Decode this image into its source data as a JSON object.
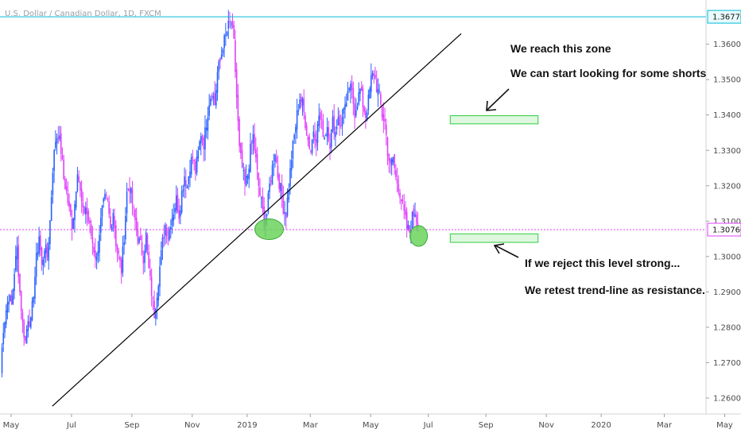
{
  "chart_data": {
    "type": "candlestick",
    "title": "U.S. Dollar / Canadian Dollar, 1D, FXCM",
    "ylim": [
      1.2555,
      1.3725
    ],
    "y_ticks": [
      {
        "value": 1.27,
        "label": "1.27000"
      },
      {
        "value": 1.28,
        "label": "1.28000"
      },
      {
        "value": 1.29,
        "label": "1.29000"
      },
      {
        "value": 1.3,
        "label": "1.30000"
      },
      {
        "value": 1.31,
        "label": "1.31000"
      },
      {
        "value": 1.32,
        "label": "1.32000"
      },
      {
        "value": 1.33,
        "label": "1.33000"
      },
      {
        "value": 1.34,
        "label": "1.34000"
      },
      {
        "value": 1.35,
        "label": "1.35000"
      },
      {
        "value": 1.36,
        "label": "1.36000"
      },
      {
        "value": 1.26,
        "label": "1.26000"
      }
    ],
    "x_ticks": [
      {
        "label": "May",
        "index": 0
      },
      {
        "label": "Jul",
        "index": 44
      },
      {
        "label": "Sep",
        "index": 88
      },
      {
        "label": "Nov",
        "index": 132
      },
      {
        "label": "2019",
        "index": 172
      },
      {
        "label": "Mar",
        "index": 218
      },
      {
        "label": "May",
        "index": 262
      },
      {
        "label": "Jul",
        "index": 304
      },
      {
        "label": "Sep",
        "index": 346
      },
      {
        "label": "Nov",
        "index": 390
      },
      {
        "label": "2020",
        "index": 430
      },
      {
        "label": "Mar",
        "index": 476
      },
      {
        "label": "May",
        "index": 520
      }
    ],
    "x_count": 540,
    "close_path": [
      [
        0,
        1.268
      ],
      [
        2,
        1.28
      ],
      [
        4,
        1.285
      ],
      [
        6,
        1.289
      ],
      [
        8,
        1.286
      ],
      [
        10,
        1.296
      ],
      [
        12,
        1.302
      ],
      [
        14,
        1.29
      ],
      [
        16,
        1.281
      ],
      [
        18,
        1.276
      ],
      [
        20,
        1.283
      ],
      [
        22,
        1.281
      ],
      [
        24,
        1.29
      ],
      [
        26,
        1.299
      ],
      [
        28,
        1.306
      ],
      [
        30,
        1.297
      ],
      [
        32,
        1.303
      ],
      [
        34,
        1.3
      ],
      [
        36,
        1.31
      ],
      [
        38,
        1.325
      ],
      [
        40,
        1.333
      ],
      [
        42,
        1.335
      ],
      [
        44,
        1.33
      ],
      [
        46,
        1.322
      ],
      [
        48,
        1.318
      ],
      [
        50,
        1.313
      ],
      [
        52,
        1.309
      ],
      [
        54,
        1.315
      ],
      [
        56,
        1.325
      ],
      [
        58,
        1.318
      ],
      [
        60,
        1.312
      ],
      [
        62,
        1.314
      ],
      [
        64,
        1.31
      ],
      [
        66,
        1.306
      ],
      [
        68,
        1.302
      ],
      [
        70,
        1.299
      ],
      [
        72,
        1.307
      ],
      [
        74,
        1.313
      ],
      [
        76,
        1.316
      ],
      [
        78,
        1.315
      ],
      [
        80,
        1.308
      ],
      [
        82,
        1.313
      ],
      [
        84,
        1.304
      ],
      [
        86,
        1.3
      ],
      [
        88,
        1.296
      ],
      [
        90,
        1.306
      ],
      [
        92,
        1.318
      ],
      [
        94,
        1.32
      ],
      [
        96,
        1.315
      ],
      [
        98,
        1.31
      ],
      [
        100,
        1.305
      ],
      [
        102,
        1.303
      ],
      [
        104,
        1.3
      ],
      [
        106,
        1.306
      ],
      [
        108,
        1.296
      ],
      [
        110,
        1.29
      ],
      [
        112,
        1.284
      ],
      [
        114,
        1.29
      ],
      [
        116,
        1.297
      ],
      [
        118,
        1.304
      ],
      [
        120,
        1.309
      ],
      [
        122,
        1.306
      ],
      [
        124,
        1.31
      ],
      [
        126,
        1.313
      ],
      [
        128,
        1.316
      ],
      [
        130,
        1.312
      ],
      [
        132,
        1.318
      ],
      [
        134,
        1.323
      ],
      [
        136,
        1.32
      ],
      [
        138,
        1.326
      ],
      [
        140,
        1.328
      ],
      [
        142,
        1.324
      ],
      [
        144,
        1.329
      ],
      [
        146,
        1.335
      ],
      [
        148,
        1.332
      ],
      [
        150,
        1.338
      ],
      [
        152,
        1.344
      ],
      [
        154,
        1.347
      ],
      [
        156,
        1.343
      ],
      [
        158,
        1.352
      ],
      [
        160,
        1.355
      ],
      [
        162,
        1.36
      ],
      [
        164,
        1.362
      ],
      [
        166,
        1.365
      ],
      [
        168,
        1.366
      ],
      [
        170,
        1.36
      ],
      [
        172,
        1.345
      ],
      [
        174,
        1.33
      ],
      [
        176,
        1.325
      ],
      [
        178,
        1.32
      ],
      [
        180,
        1.323
      ],
      [
        182,
        1.33
      ],
      [
        184,
        1.334
      ],
      [
        186,
        1.327
      ],
      [
        188,
        1.32
      ],
      [
        190,
        1.315
      ],
      [
        192,
        1.31
      ],
      [
        194,
        1.312
      ],
      [
        196,
        1.32
      ],
      [
        198,
        1.325
      ],
      [
        200,
        1.33
      ],
      [
        202,
        1.323
      ],
      [
        204,
        1.319
      ],
      [
        206,
        1.314
      ],
      [
        208,
        1.312
      ],
      [
        210,
        1.32
      ],
      [
        212,
        1.328
      ],
      [
        214,
        1.334
      ],
      [
        216,
        1.34
      ],
      [
        218,
        1.345
      ],
      [
        220,
        1.343
      ],
      [
        222,
        1.338
      ],
      [
        224,
        1.333
      ],
      [
        226,
        1.33
      ],
      [
        228,
        1.336
      ],
      [
        230,
        1.333
      ],
      [
        232,
        1.34
      ],
      [
        234,
        1.337
      ],
      [
        236,
        1.334
      ],
      [
        238,
        1.337
      ],
      [
        240,
        1.332
      ],
      [
        242,
        1.338
      ],
      [
        244,
        1.335
      ],
      [
        246,
        1.34
      ],
      [
        248,
        1.336
      ],
      [
        250,
        1.343
      ],
      [
        252,
        1.342
      ],
      [
        254,
        1.348
      ],
      [
        256,
        1.346
      ],
      [
        258,
        1.341
      ],
      [
        260,
        1.344
      ],
      [
        262,
        1.347
      ],
      [
        264,
        1.343
      ],
      [
        266,
        1.34
      ],
      [
        268,
        1.344
      ],
      [
        270,
        1.35
      ],
      [
        272,
        1.352
      ],
      [
        274,
        1.348
      ],
      [
        276,
        1.345
      ],
      [
        278,
        1.34
      ],
      [
        280,
        1.338
      ],
      [
        282,
        1.33
      ],
      [
        284,
        1.325
      ],
      [
        286,
        1.328
      ],
      [
        288,
        1.322
      ],
      [
        290,
        1.32
      ],
      [
        292,
        1.316
      ],
      [
        294,
        1.312
      ],
      [
        296,
        1.308
      ],
      [
        298,
        1.307
      ],
      [
        300,
        1.311
      ],
      [
        302,
        1.313
      ],
      [
        304,
        1.308
      ]
    ],
    "levels": [
      {
        "value": 1.36776,
        "label": "1.36776",
        "color": "#00bcd4",
        "style": "solid"
      },
      {
        "value": 1.3076,
        "label": "1.30760",
        "color": "#e040fb",
        "style": "dotted"
      }
    ],
    "trendline": {
      "from": [
        30,
        1.2577
      ],
      "to": [
        328,
        1.363
      ],
      "color": "#000000"
    },
    "zones": [
      {
        "index_start": 320,
        "index_end": 384,
        "y_top": 1.3398,
        "y_bottom": 1.3375,
        "color": "#2ecc40"
      },
      {
        "index_start": 320,
        "index_end": 384,
        "y_top": 1.3064,
        "y_bottom": 1.304,
        "color": "#2ecc40"
      }
    ],
    "ellipses": [
      {
        "index": 188,
        "value": 1.3077,
        "color": "#6bd35a"
      },
      {
        "index": 297,
        "value": 1.3058,
        "color": "#6bd35a"
      }
    ],
    "colors": {
      "up": "#2962ff",
      "down": "#e040fb"
    },
    "annotations": [
      {
        "key": "a1",
        "text": "We reach this zone"
      },
      {
        "key": "a2",
        "text": "We can start looking for some shorts"
      },
      {
        "key": "a3",
        "text": "If we reject this level strong..."
      },
      {
        "key": "a4",
        "text": "We retest trend-line as resistance."
      }
    ]
  }
}
